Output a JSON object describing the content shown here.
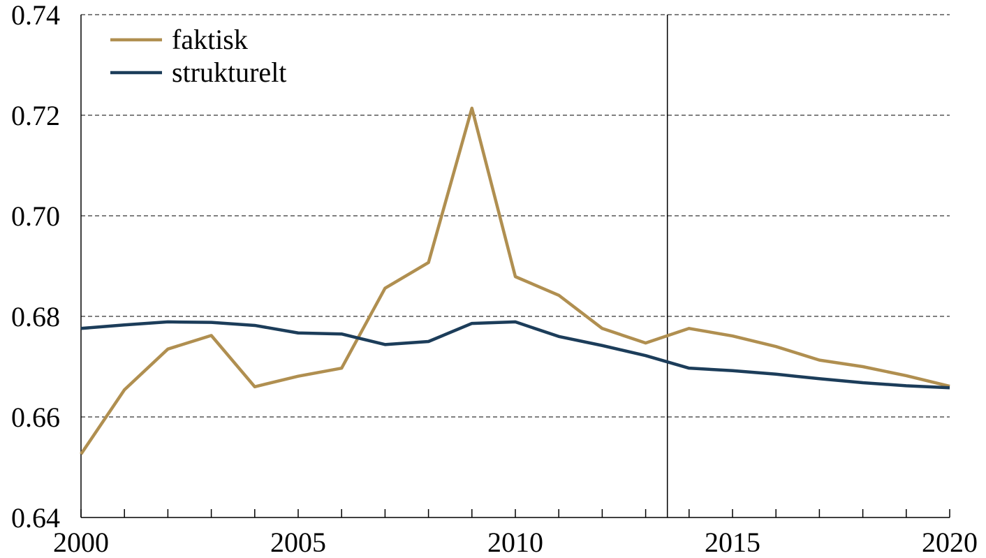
{
  "chart_data": {
    "type": "line",
    "x": [
      2000,
      2001,
      2002,
      2003,
      2004,
      2005,
      2006,
      2007,
      2008,
      2009,
      2010,
      2011,
      2012,
      2013,
      2014,
      2015,
      2016,
      2017,
      2018,
      2019,
      2020
    ],
    "series": [
      {
        "name": "faktisk",
        "color": "#b08f50",
        "values": [
          0.6526,
          0.6654,
          0.6735,
          0.6762,
          0.666,
          0.6681,
          0.6697,
          0.6856,
          0.6907,
          0.7214,
          0.6879,
          0.6842,
          0.6776,
          0.6747,
          0.6776,
          0.6761,
          0.674,
          0.6713,
          0.67,
          0.6682,
          0.6661
        ]
      },
      {
        "name": "strukturelt",
        "color": "#1c3d5a",
        "values": [
          0.6776,
          0.6783,
          0.6789,
          0.6788,
          0.6782,
          0.6767,
          0.6765,
          0.6744,
          0.675,
          0.6786,
          0.6789,
          0.676,
          0.6742,
          0.6722,
          0.6697,
          0.6692,
          0.6685,
          0.6676,
          0.6668,
          0.6662,
          0.6658
        ]
      }
    ],
    "xlim": [
      2000,
      2020
    ],
    "xticks": [
      2000,
      2005,
      2010,
      2015,
      2020
    ],
    "ylim": [
      0.64,
      0.74
    ],
    "yticks": [
      0.64,
      0.66,
      0.68,
      {
        "value": 0.7,
        "label": "0.70"
      },
      0.72,
      0.74
    ],
    "vline": 2013.5,
    "grid": true,
    "legend": "upper-left"
  }
}
